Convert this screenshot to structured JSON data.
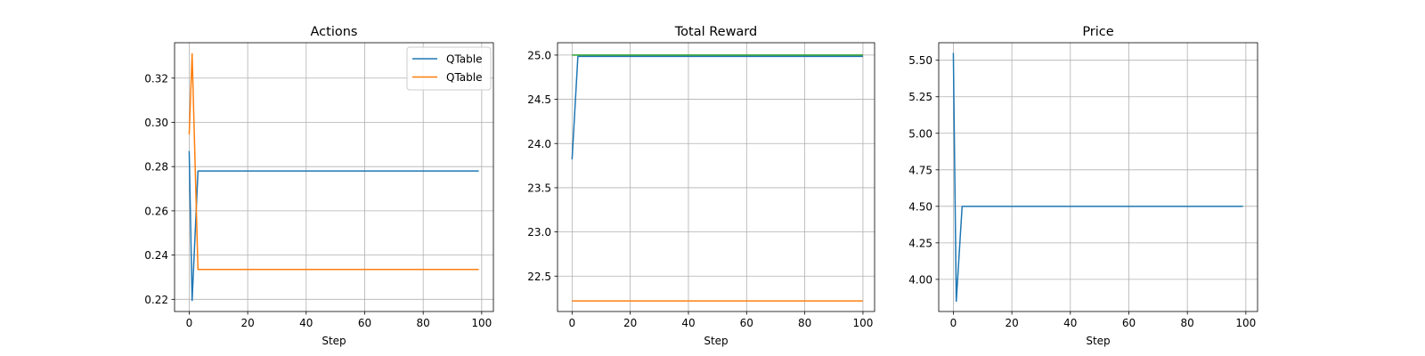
{
  "figure": {
    "background": "#ffffff"
  },
  "chart_data": [
    {
      "type": "line",
      "title": "Actions",
      "xlabel": "Step",
      "ylabel": "",
      "xlim": [
        -5,
        104
      ],
      "ylim": [
        0.2145,
        0.336
      ],
      "xticks": [
        0,
        20,
        40,
        60,
        80,
        100
      ],
      "xtick_labels": [
        "0",
        "20",
        "40",
        "60",
        "80",
        "100"
      ],
      "yticks": [
        0.22,
        0.24,
        0.26,
        0.28,
        0.3,
        0.32
      ],
      "ytick_labels": [
        "0.22",
        "0.24",
        "0.26",
        "0.28",
        "0.30",
        "0.32"
      ],
      "grid": true,
      "legend": {
        "placement": "top-right",
        "entries": [
          "QTable",
          "QTable"
        ]
      },
      "series": [
        {
          "name": "QTable",
          "color": "#1f77b4",
          "x": [
            0,
            1,
            3,
            99
          ],
          "y": [
            0.287,
            0.2195,
            0.278,
            0.278
          ]
        },
        {
          "name": "QTable",
          "color": "#ff7f0e",
          "x": [
            0,
            1,
            3,
            99
          ],
          "y": [
            0.2945,
            0.331,
            0.2335,
            0.2335
          ]
        }
      ]
    },
    {
      "type": "line",
      "title": "Total Reward",
      "xlabel": "Step",
      "ylabel": "",
      "xlim": [
        -5,
        104
      ],
      "ylim": [
        22.1,
        25.14
      ],
      "xticks": [
        0,
        20,
        40,
        60,
        80,
        100
      ],
      "xtick_labels": [
        "0",
        "20",
        "40",
        "60",
        "80",
        "100"
      ],
      "yticks": [
        22.5,
        23.0,
        23.5,
        24.0,
        24.5,
        25.0
      ],
      "ytick_labels": [
        "22.5",
        "23.0",
        "23.5",
        "24.0",
        "24.5",
        "25.0"
      ],
      "grid": true,
      "series": [
        {
          "color": "#1f77b4",
          "x": [
            0,
            2,
            100
          ],
          "y": [
            23.82,
            24.985,
            24.985
          ]
        },
        {
          "color": "#ff7f0e",
          "x": [
            0,
            100
          ],
          "y": [
            22.22,
            22.22
          ]
        },
        {
          "color": "#2ca02c",
          "x": [
            0,
            100
          ],
          "y": [
            25.0,
            25.0
          ]
        }
      ]
    },
    {
      "type": "line",
      "title": "Price",
      "xlabel": "Step",
      "ylabel": "",
      "xlim": [
        -5,
        104
      ],
      "ylim": [
        3.78,
        5.62
      ],
      "xticks": [
        0,
        20,
        40,
        60,
        80,
        100
      ],
      "xtick_labels": [
        "0",
        "20",
        "40",
        "60",
        "80",
        "100"
      ],
      "yticks": [
        4.0,
        4.25,
        4.5,
        4.75,
        5.0,
        5.25,
        5.5
      ],
      "ytick_labels": [
        "4.00",
        "4.25",
        "4.50",
        "4.75",
        "5.00",
        "5.25",
        "5.50"
      ],
      "grid": true,
      "series": [
        {
          "color": "#1f77b4",
          "x": [
            0,
            1,
            3,
            99
          ],
          "y": [
            5.55,
            3.85,
            4.5,
            4.5
          ]
        }
      ]
    }
  ]
}
